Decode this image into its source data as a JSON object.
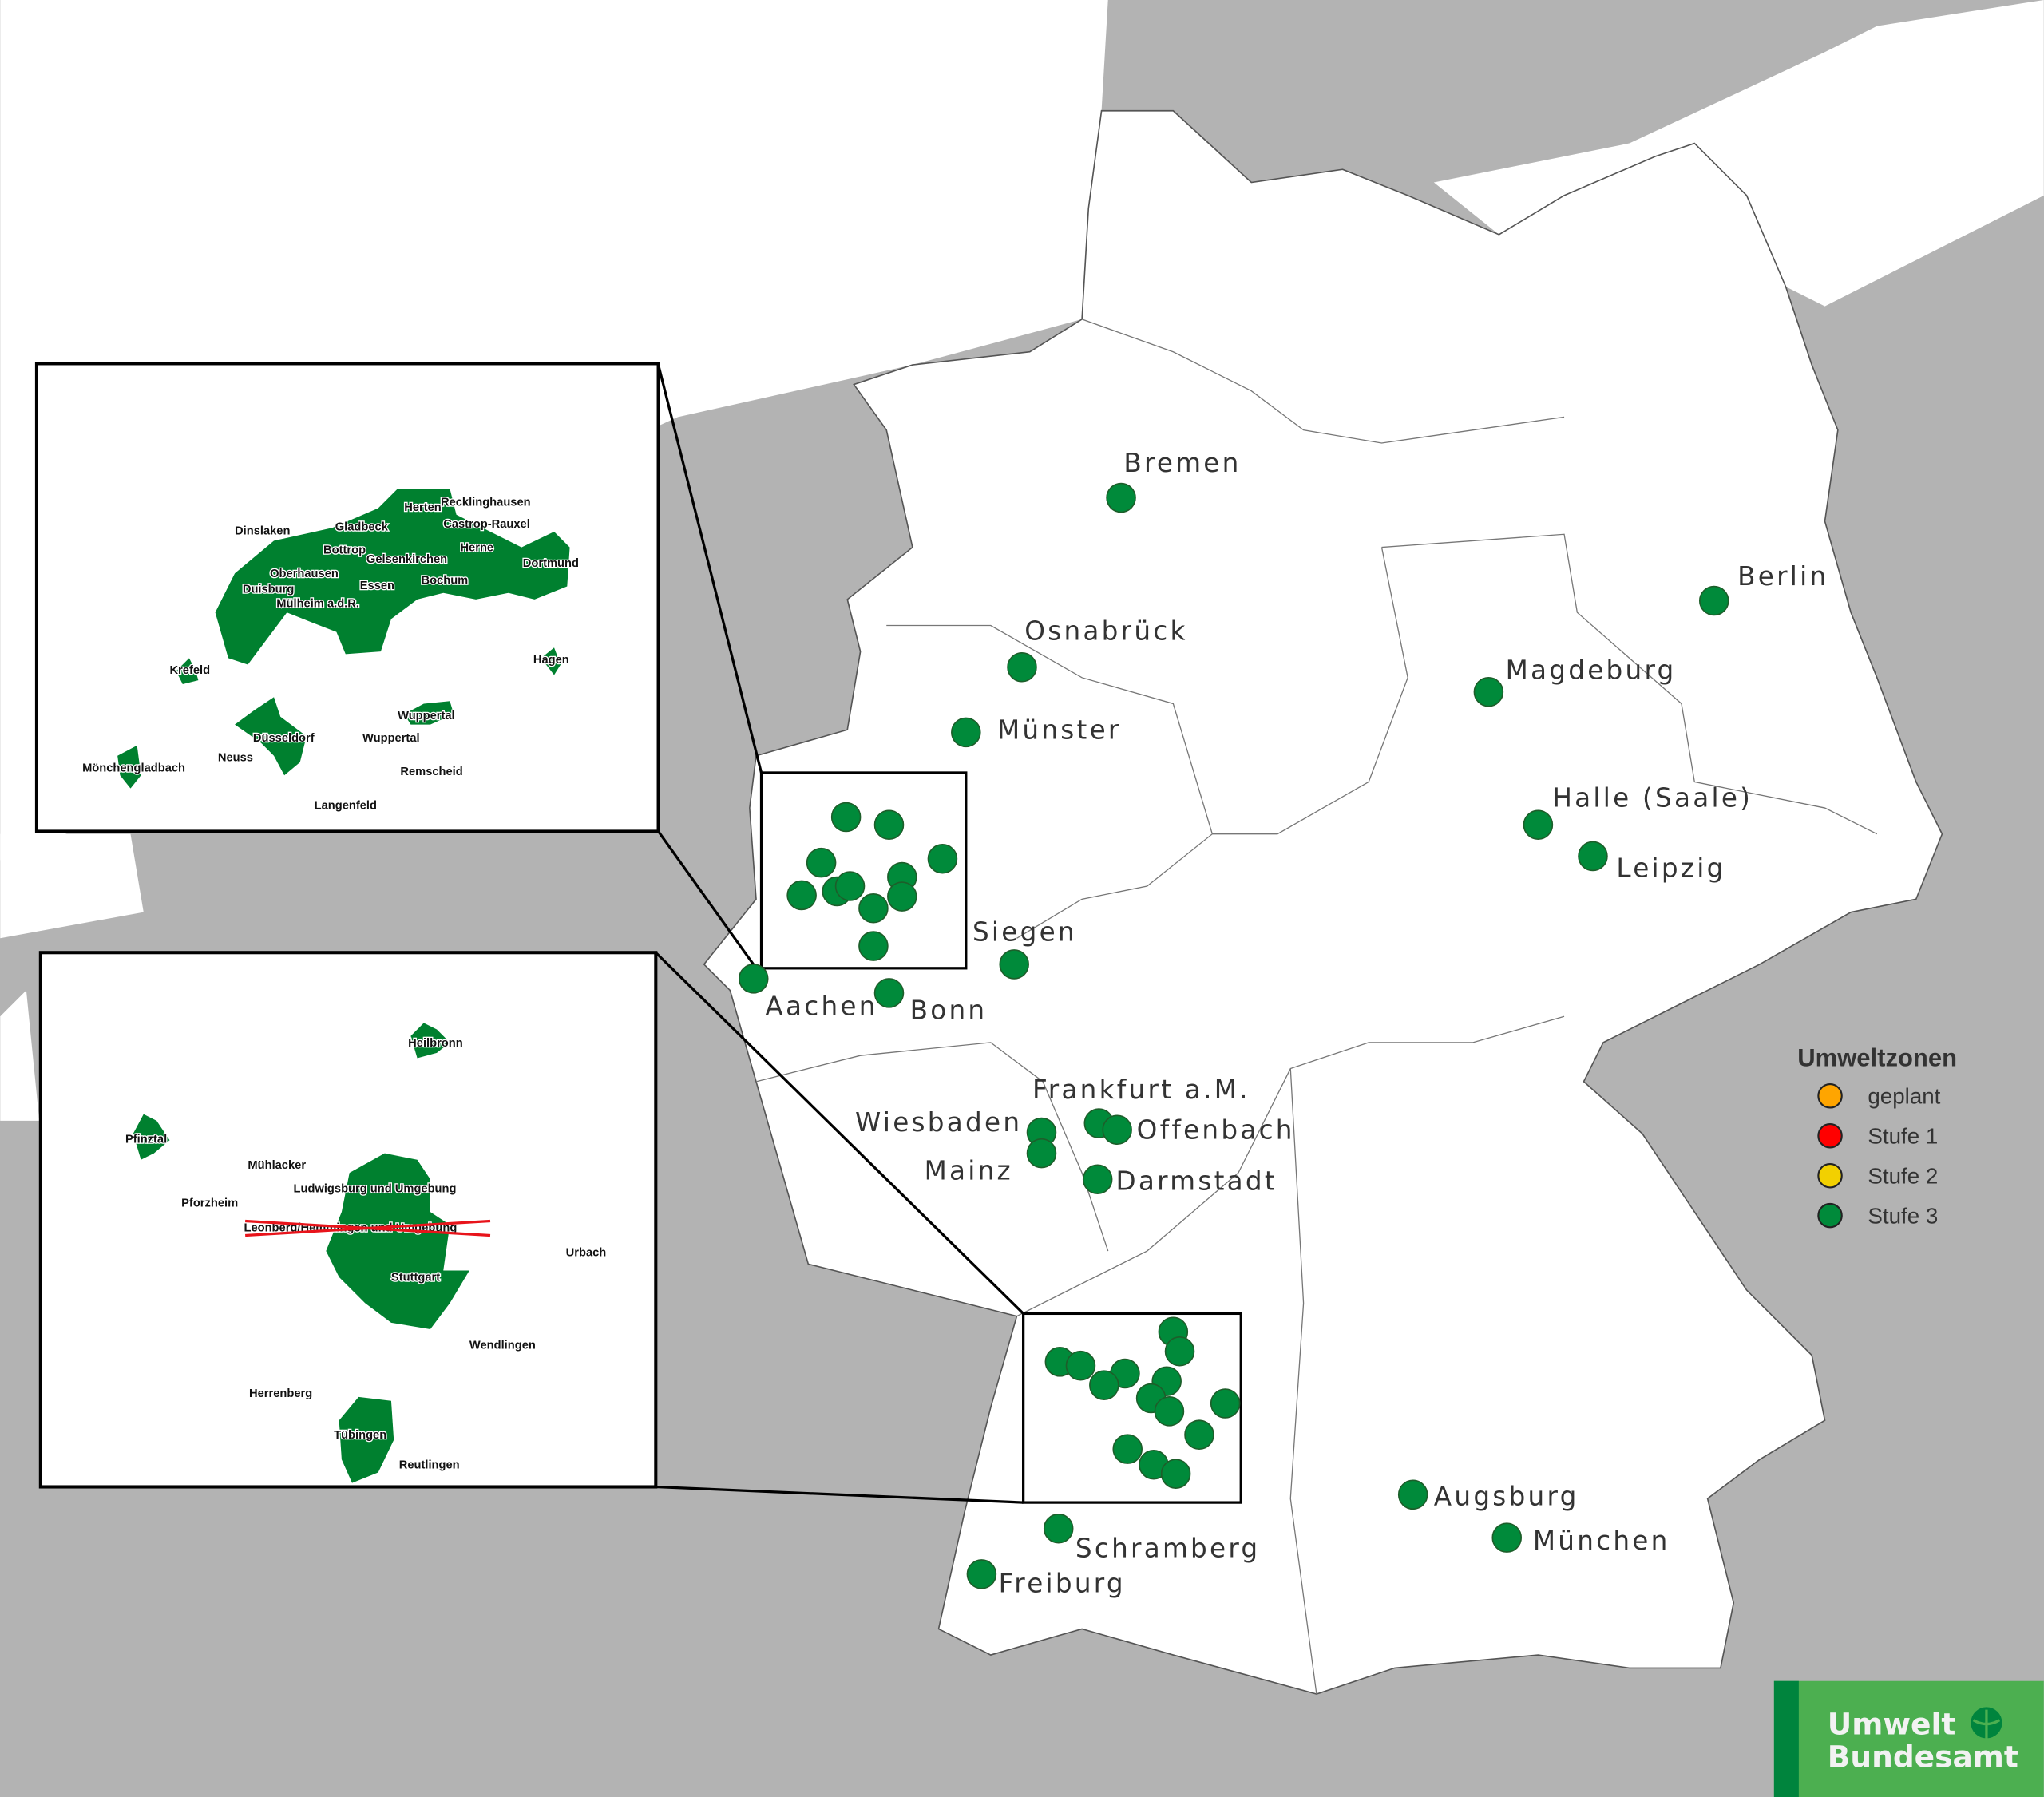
{
  "legend": {
    "title": "Umweltzonen",
    "items": [
      {
        "label": "geplant",
        "color": "#ffa500"
      },
      {
        "label": "Stufe 1",
        "color": "#ff0000"
      },
      {
        "label": "Stufe 2",
        "color": "#f2d000"
      },
      {
        "label": "Stufe 3",
        "color": "#008a3a"
      }
    ]
  },
  "colors": {
    "zone": "#008a3a",
    "inset_zone": "#00802f",
    "land_other": "#b3b3b3",
    "germany": "#ffffff",
    "logo_green": "#4caf50",
    "logo_dark": "#00843d"
  },
  "cities": [
    "Bremen",
    "Berlin",
    "Osnabrück",
    "Magdeburg",
    "Münster",
    "Halle (Saale)",
    "Leipzig",
    "Siegen",
    "Aachen",
    "Bonn",
    "Frankfurt a.M.",
    "Wiesbaden",
    "Offenbach",
    "Mainz",
    "Darmstadt",
    "Augsburg",
    "München",
    "Schramberg",
    "Freiburg"
  ],
  "inset_ruhr": [
    "Dinslaken",
    "Gladbeck",
    "Herten",
    "Recklinghausen",
    "Castrop-Rauxel",
    "Bottrop",
    "Gelsenkirchen",
    "Herne",
    "Dortmund",
    "Oberhausen",
    "Duisburg",
    "Essen",
    "Bochum",
    "Mülheim a.d.R.",
    "Krefeld",
    "Hagen",
    "Wuppertal",
    "Wuppertal",
    "Düsseldorf",
    "Neuss",
    "Mönchengladbach",
    "Remscheid",
    "Langenfeld"
  ],
  "inset_stuttgart": [
    "Heilbronn",
    "Pfinztal",
    "Mühlacker",
    "Ludwigsburg und Umgebung",
    "Pforzheim",
    "Leonberg/Hemmingen und Umgebung",
    "Urbach",
    "Stuttgart",
    "Wendlingen",
    "Herrenberg",
    "Tübingen",
    "Reutlingen"
  ],
  "logo": {
    "line1": "Umwelt",
    "line2": "Bundesamt"
  }
}
